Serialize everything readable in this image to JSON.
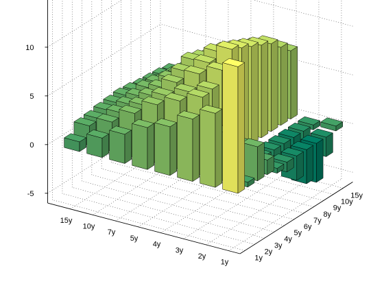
{
  "chart_data": {
    "type": "bar3",
    "title": "",
    "xlabel": "",
    "ylabel": "",
    "zlabel": "",
    "x_tick_labels": [
      "15y",
      "10y",
      "7y",
      "5y",
      "4y",
      "3y",
      "2y",
      "1y"
    ],
    "y_tick_labels": [
      "1y",
      "2y",
      "3y",
      "4y",
      "5y",
      "6y",
      "7y",
      "8y",
      "9y",
      "10y",
      "15y"
    ],
    "z_ticks": [
      -5,
      0,
      5,
      10
    ],
    "zlim": [
      -6,
      15
    ],
    "grid": true,
    "colormap": "summer",
    "matrix": [
      [
        13.0,
        7.6,
        6.4,
        5.0,
        4.3,
        3.0,
        2.0,
        1.0
      ],
      [
        0.5,
        5.0,
        8.0,
        7.0,
        6.0,
        4.5,
        3.0,
        2.0
      ],
      [
        3.5,
        4.5,
        8.2,
        7.3,
        6.3,
        4.7,
        3.3,
        2.1
      ],
      [
        1.5,
        2.5,
        9.5,
        8.5,
        7.0,
        5.0,
        3.5,
        2.3
      ],
      [
        -0.5,
        1.0,
        11.0,
        9.0,
        7.5,
        5.2,
        3.7,
        2.4
      ],
      [
        -1.0,
        -0.5,
        10.5,
        9.5,
        8.0,
        5.5,
        3.9,
        2.5
      ],
      [
        -2.5,
        -1.5,
        10.0,
        9.0,
        7.6,
        5.3,
        3.8,
        2.4
      ],
      [
        -3.5,
        -2.0,
        9.5,
        8.5,
        7.2,
        5.0,
        3.5,
        2.2
      ],
      [
        -4.0,
        -3.0,
        9.0,
        8.0,
        6.8,
        4.8,
        3.4,
        2.1
      ],
      [
        -2.0,
        -1.5,
        8.0,
        7.5,
        6.3,
        4.5,
        3.2,
        2.0
      ],
      [
        0.5,
        -0.5,
        7.0,
        6.5,
        5.5,
        4.0,
        3.0,
        1.8
      ]
    ]
  }
}
